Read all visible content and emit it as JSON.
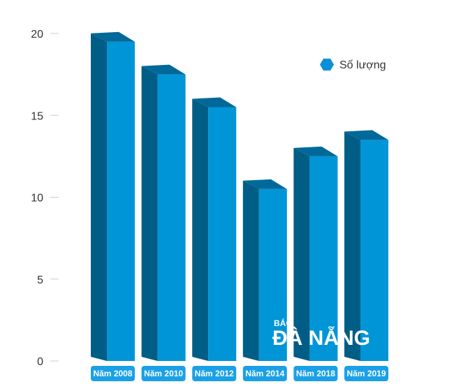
{
  "chart_data": {
    "type": "bar",
    "categories": [
      "Năm 2008",
      "Năm 2010",
      "Năm 2012",
      "Năm 2014",
      "Năm 2018",
      "Năm 2019"
    ],
    "series": [
      {
        "name": "Số lượng",
        "values": [
          19.5,
          17.5,
          15.5,
          10.5,
          12.5,
          13.5
        ]
      }
    ],
    "yticks": [
      "0",
      "5",
      "10",
      "15",
      "20"
    ],
    "ylim": [
      0,
      20
    ],
    "legend_position": "top-right",
    "colors": {
      "front": "#0095d6",
      "side": "#005d86",
      "top": "#00699a",
      "label_bg": "#1aa0e6"
    }
  },
  "watermark": {
    "top": "BÁO",
    "bottom": "ĐÀ NẴNG"
  }
}
